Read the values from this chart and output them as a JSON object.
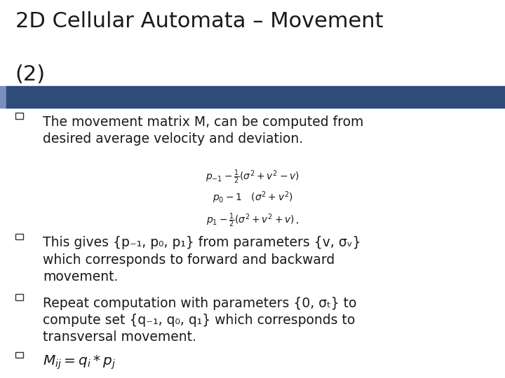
{
  "title_line1": "2D Cellular Automata – Movement",
  "title_line2": "(2)",
  "title_fontsize": 22,
  "title_color": "#1a1a1a",
  "header_bar_color": "#2E4B7A",
  "header_bar_left_color": "#7B8FBD",
  "background_color": "#FFFFFF",
  "bullet_color": "#333333",
  "text_color": "#1a1a1a",
  "text_fontsize": 13.5,
  "formula_lines": [
    "p_{-1} - \\frac{1}{2}(\\sigma^2 + v^2 - v)",
    "p_0 - 1 \\quad (\\sigma^2 + v^2)",
    "p_1 - \\frac{1}{2}(\\sigma^2 + v^2 + v)\\,,"
  ],
  "bullet1": "The movement matrix M, can be computed from\ndesired average velocity and deviation.",
  "bullet2_part1": "This gives {p",
  "bullet2_sub1": "-1",
  "bullet2_part2": ", p",
  "bullet2_sub2": "0",
  "bullet2_part3": ", p",
  "bullet2_sub3": "1",
  "bullet2_part4": "} from parameters {v, σ",
  "bullet2_sub4": "v",
  "bullet2_part5": "}\nwhich corresponds to forward and backward\nmovement.",
  "bullet3": "Repeat computation with parameters {0, σ",
  "bullet3_sub": "t",
  "bullet3_rest": "} to\ncompute set {q",
  "bullet3_sub2": "-1",
  "bullet3_rest2": ", q",
  "bullet3_sub3": "0",
  "bullet3_rest3": ", q",
  "bullet3_sub4": "1",
  "bullet3_rest4": "} which corresponds to\ntransversal movement.",
  "bullet4_formula": "M_{ij} = q_i * p_j"
}
